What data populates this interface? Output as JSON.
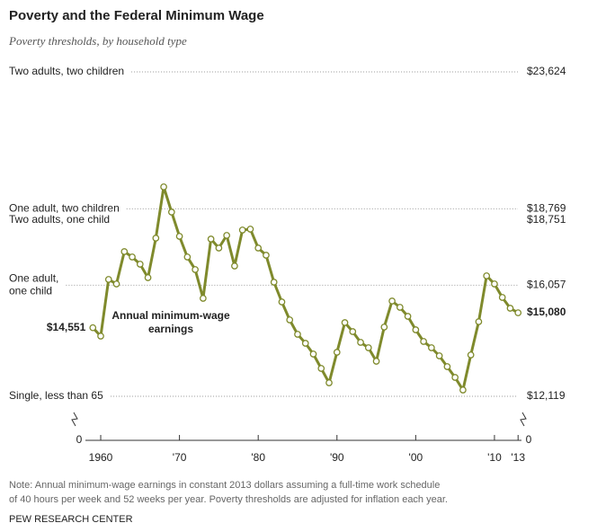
{
  "chart_data": {
    "type": "line",
    "title": "Poverty and the Federal Minimum Wage",
    "subtitle": "Poverty thresholds, by household type",
    "annotation": [
      "Annual minimum-wage",
      "earnings"
    ],
    "note": [
      "Note: Annual minimum-wage earnings in constant 2013 dollars assuming a full-time work schedule",
      "of 40 hours per week and 52 weeks per year. Poverty thresholds are adjusted for inflation each year."
    ],
    "source": "PEW RESEARCH CENTER",
    "y_break_label": "0",
    "x": [
      1959,
      1960,
      1961,
      1962,
      1963,
      1964,
      1965,
      1966,
      1967,
      1968,
      1969,
      1970,
      1971,
      1972,
      1973,
      1974,
      1975,
      1976,
      1977,
      1978,
      1979,
      1980,
      1981,
      1982,
      1983,
      1984,
      1985,
      1986,
      1987,
      1988,
      1989,
      1990,
      1991,
      1992,
      1993,
      1994,
      1995,
      1996,
      1997,
      1998,
      1999,
      2000,
      2001,
      2002,
      2003,
      2004,
      2005,
      2006,
      2007,
      2008,
      2009,
      2010,
      2011,
      2012,
      2013
    ],
    "series": [
      {
        "name": "Annual minimum-wage earnings",
        "color": "#7f8a2c",
        "values": [
          14551,
          14254,
          16262,
          16103,
          17250,
          17059,
          16804,
          16326,
          17728,
          19545,
          18652,
          17792,
          17059,
          16613,
          15593,
          17696,
          17377,
          17824,
          16740,
          18015,
          18047,
          17377,
          17122,
          16166,
          15465,
          14828,
          14318,
          13999,
          13617,
          13107,
          12597,
          13680,
          14732,
          14413,
          14031,
          13840,
          13362,
          14573,
          15497,
          15274,
          14955,
          14477,
          14063,
          13840,
          13553,
          13171,
          12788,
          12342,
          13585,
          14764,
          16390,
          16103,
          15625,
          15242,
          15080
        ],
        "value_labels": [
          "$14,551",
          null,
          null,
          null,
          null,
          null,
          null,
          null,
          null,
          null,
          null,
          null,
          null,
          null,
          null,
          null,
          null,
          null,
          null,
          null,
          null,
          null,
          null,
          null,
          null,
          null,
          null,
          null,
          null,
          null,
          null,
          null,
          null,
          null,
          null,
          null,
          null,
          null,
          null,
          null,
          null,
          null,
          null,
          null,
          null,
          null,
          null,
          null,
          null,
          null,
          null,
          null,
          null,
          null,
          "$15,080"
        ]
      }
    ],
    "thresholds": [
      {
        "label": [
          "Two adults, two children"
        ],
        "value": 23624,
        "value_label": "$23,624"
      },
      {
        "label": [
          "One adult, two children"
        ],
        "value": 18769,
        "value_label": "$18,769"
      },
      {
        "label": [
          "Two adults, one child"
        ],
        "value": 18751,
        "value_label": "$18,751"
      },
      {
        "label": [
          "One adult,",
          "one child"
        ],
        "value": 16057,
        "value_label": "$16,057"
      },
      {
        "label": [
          "Single, less than 65"
        ],
        "value": 12119,
        "value_label": "$12,119"
      }
    ],
    "xlim": [
      1958,
      2013.5
    ],
    "ylim": [
      11500,
      24000
    ],
    "xticks": [
      {
        "value": 1960,
        "label": "1960"
      },
      {
        "value": 1970,
        "label": "'70"
      },
      {
        "value": 1980,
        "label": "'80"
      },
      {
        "value": 1990,
        "label": "'90"
      },
      {
        "value": 2000,
        "label": "'00"
      },
      {
        "value": 2010,
        "label": "'10"
      },
      {
        "value": 2013,
        "label": "'13"
      }
    ]
  }
}
